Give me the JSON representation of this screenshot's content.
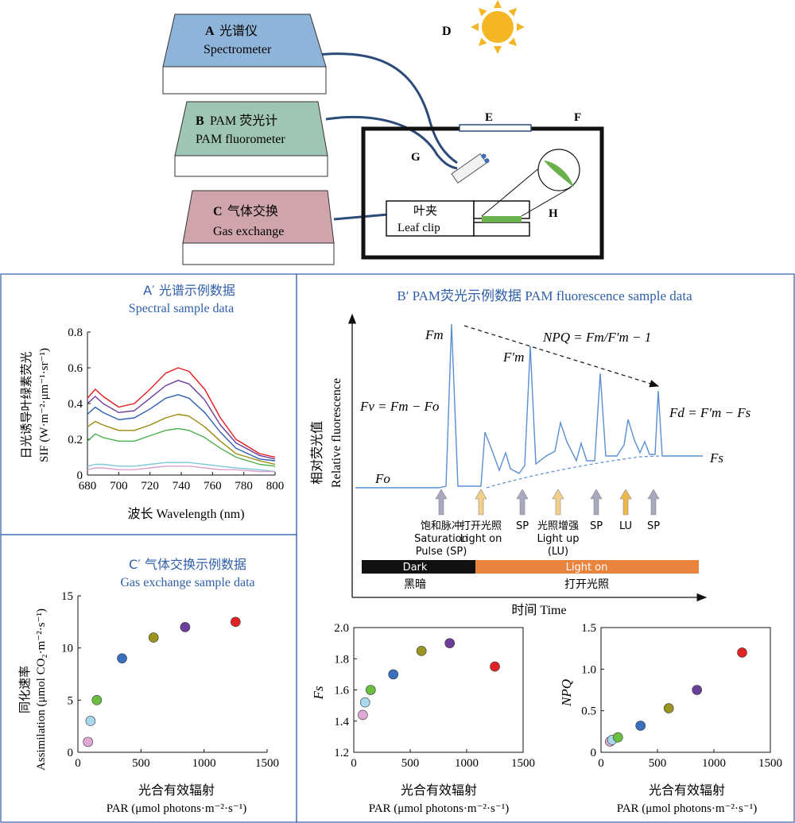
{
  "top": {
    "spectrometer": {
      "letter": "A",
      "cn": "光谱仪",
      "en": "Spectrometer",
      "color": "#8fb4d9"
    },
    "pam": {
      "letter": "B",
      "cn": "PAM 荧光计",
      "en": "PAM fluorometer",
      "color": "#9fc5b4"
    },
    "gas": {
      "letter": "C",
      "cn": "气体交换",
      "en": "Gas exchange",
      "color": "#cfa5ab"
    },
    "sun_label": "D",
    "window_label": "E",
    "chamber_label": "F",
    "probe_label": "G",
    "zoom_label": "H",
    "leafclip_cn": "叶夹",
    "leafclip_en": "Leaf clip",
    "sun_color": "#f5b625",
    "leaf_color": "#6ab04c"
  },
  "panel_a": {
    "title_cn": "A′ 光谱示例数据",
    "title_en": "Spectral sample data",
    "ylabel_cn": "日光诱导叶绿素荧光",
    "ylabel_en": "SIF (W·m⁻²·μm⁻¹·sr⁻¹)",
    "xlabel": "波长 Wavelength (nm)",
    "chart_data": {
      "type": "line",
      "x": [
        680,
        685,
        690,
        700,
        710,
        720,
        730,
        738,
        745,
        755,
        765,
        775,
        790,
        800
      ],
      "xlim": [
        680,
        800
      ],
      "ylim": [
        0,
        0.8
      ],
      "xticks": [
        "680",
        "700",
        "720",
        "740",
        "760",
        "780",
        "800"
      ],
      "yticks": [
        "0",
        "0.2",
        "0.4",
        "0.6",
        "0.8"
      ],
      "series": [
        {
          "color": "#e31a1c",
          "values": [
            0.43,
            0.48,
            0.44,
            0.38,
            0.4,
            0.48,
            0.57,
            0.6,
            0.58,
            0.48,
            0.32,
            0.2,
            0.12,
            0.1
          ]
        },
        {
          "color": "#6a3d9a",
          "values": [
            0.4,
            0.44,
            0.4,
            0.35,
            0.36,
            0.43,
            0.5,
            0.53,
            0.51,
            0.42,
            0.28,
            0.18,
            0.11,
            0.09
          ]
        },
        {
          "color": "#2b5fb0",
          "values": [
            0.34,
            0.38,
            0.35,
            0.31,
            0.32,
            0.37,
            0.43,
            0.45,
            0.43,
            0.35,
            0.24,
            0.15,
            0.09,
            0.08
          ]
        },
        {
          "color": "#9a8a10",
          "values": [
            0.27,
            0.3,
            0.28,
            0.25,
            0.25,
            0.28,
            0.32,
            0.34,
            0.33,
            0.27,
            0.19,
            0.12,
            0.08,
            0.06
          ]
        },
        {
          "color": "#4daf4a",
          "values": [
            0.19,
            0.23,
            0.21,
            0.19,
            0.19,
            0.22,
            0.25,
            0.26,
            0.25,
            0.21,
            0.15,
            0.1,
            0.06,
            0.05
          ]
        },
        {
          "color": "#7ec8d8",
          "values": [
            0.05,
            0.06,
            0.06,
            0.05,
            0.05,
            0.06,
            0.07,
            0.07,
            0.07,
            0.06,
            0.05,
            0.04,
            0.03,
            0.02
          ]
        },
        {
          "color": "#d8a0cc",
          "values": [
            0.03,
            0.04,
            0.04,
            0.03,
            0.03,
            0.04,
            0.05,
            0.05,
            0.05,
            0.04,
            0.03,
            0.03,
            0.02,
            0.02
          ]
        }
      ]
    }
  },
  "panel_b": {
    "title": "B′ PAM荧光示例数据 PAM fluorescence sample data",
    "ylabel_cn": "相对荧光值",
    "ylabel_en": "Relative fluorescence",
    "xlabel": "时间 Time",
    "npq_eq": "NPQ = Fm/F′m − 1",
    "fv_eq": "Fv = Fm − Fo",
    "fd_eq": "Fd = F′m − Fs",
    "fm": "Fm",
    "fm_prime": "F′m",
    "fo": "Fo",
    "fs": "Fs",
    "events": [
      {
        "label": "饱和脉冲\nSaturation\nPulse (SP)",
        "color": "#a8a8c0"
      },
      {
        "label": "打开光照\nLight on",
        "color": "#f3cf8a"
      },
      {
        "label": "SP",
        "color": "#a8a8c0"
      },
      {
        "label": "光照增强\nLight up\n(LU)",
        "color": "#f3cf8a"
      },
      {
        "label": "SP",
        "color": "#a8a8c0"
      },
      {
        "label": "LU",
        "color": "#f0b84a"
      },
      {
        "label": "SP",
        "color": "#a8a8c0"
      }
    ],
    "dark_en": "Dark",
    "dark_cn": "黑暗",
    "light_en": "Light on",
    "light_cn": "打开光照",
    "dark_color": "#111111",
    "light_color": "#e9843f",
    "trace_color": "#5b8fd0"
  },
  "panel_c": {
    "title_cn": "C′ 气体交换示例数据",
    "title_en": "Gas exchange sample data",
    "ylabel_cn": "同化速率",
    "ylabel_en": "Assimilation (μmol CO₂·m⁻²·s⁻¹)",
    "xlabel_cn": "光合有效辐射",
    "xlabel_en": "PAR (μmol photons·m⁻²·s⁻¹)",
    "chart_data": {
      "type": "scatter",
      "x": [
        80,
        100,
        150,
        350,
        600,
        850,
        1250
      ],
      "values": [
        1,
        3,
        5,
        9,
        11,
        12,
        12.5
      ],
      "colors": [
        "#e0a8d4",
        "#a8d8ee",
        "#6abf40",
        "#3a6fc0",
        "#9a9420",
        "#6a3f9a",
        "#e02424"
      ],
      "xlim": [
        0,
        1500
      ],
      "ylim": [
        0,
        15
      ],
      "xticks": [
        "0",
        "500",
        "1000",
        "1500"
      ],
      "yticks": [
        "0",
        "5",
        "10",
        "15"
      ]
    }
  },
  "panel_fs": {
    "ylabel": "Fs",
    "xlabel_cn": "光合有效辐射",
    "xlabel_en": "PAR (μmol photons·m⁻²·s⁻¹)",
    "chart_data": {
      "type": "scatter",
      "x": [
        80,
        100,
        150,
        350,
        600,
        850,
        1250
      ],
      "values": [
        1.44,
        1.52,
        1.6,
        1.7,
        1.85,
        1.9,
        1.75
      ],
      "colors": [
        "#e0a8d4",
        "#a8d8ee",
        "#6abf40",
        "#3a6fc0",
        "#9a9420",
        "#6a3f9a",
        "#e02424"
      ],
      "xlim": [
        0,
        1500
      ],
      "ylim": [
        1.2,
        2.0
      ],
      "xticks": [
        "0",
        "500",
        "1000",
        "1500"
      ],
      "yticks": [
        "1.2",
        "1.4",
        "1.6",
        "1.8",
        "2.0"
      ]
    }
  },
  "panel_npq": {
    "ylabel": "NPQ",
    "xlabel_cn": "光合有效辐射",
    "xlabel_en": "PAR (μmol photons·m⁻²·s⁻¹)",
    "chart_data": {
      "type": "scatter",
      "x": [
        80,
        100,
        150,
        350,
        600,
        850,
        1250
      ],
      "values": [
        0.13,
        0.15,
        0.18,
        0.32,
        0.53,
        0.75,
        1.2
      ],
      "colors": [
        "#e0a8d4",
        "#a8d8ee",
        "#6abf40",
        "#3a6fc0",
        "#9a9420",
        "#6a3f9a",
        "#e02424"
      ],
      "xlim": [
        0,
        1500
      ],
      "ylim": [
        0,
        1.5
      ],
      "xticks": [
        "0",
        "500",
        "1000",
        "1500"
      ],
      "yticks": [
        "0",
        "0.5",
        "1.0",
        "1.5"
      ]
    }
  }
}
